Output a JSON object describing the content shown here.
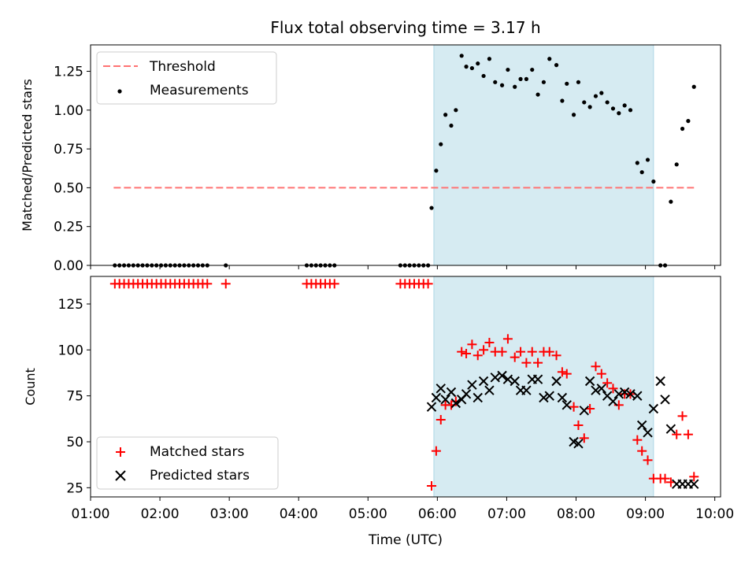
{
  "title": "Flux total observing time = 3.17 h",
  "xlabel": "Time (UTC)",
  "x_ticks": [
    "01:00",
    "02:00",
    "03:00",
    "04:00",
    "05:00",
    "06:00",
    "07:00",
    "08:00",
    "09:00",
    "10:00"
  ],
  "colors": {
    "threshold": "#ff7373",
    "measurements": "#000000",
    "matched": "#ff0000",
    "predicted": "#000000",
    "window": "#add8e6"
  },
  "chart_data": [
    {
      "type": "scatter",
      "ylabel": "Matched/Predicted stars",
      "xlim": [
        "01:00",
        "10:05"
      ],
      "ylim": [
        0,
        1.42
      ],
      "y_ticks": [
        "0.00",
        "0.25",
        "0.50",
        "0.75",
        "1.00",
        "1.25"
      ],
      "shaded_window": [
        "05:57",
        "09:07"
      ],
      "legend_position": "upper left",
      "threshold": {
        "name": "Threshold",
        "value": 0.5,
        "x_range": [
          "01:20",
          "09:42"
        ]
      },
      "series": [
        {
          "name": "Measurements",
          "marker": "dot",
          "x": [
            "01:21",
            "01:25",
            "01:29",
            "01:33",
            "01:37",
            "01:41",
            "01:45",
            "01:49",
            "01:53",
            "01:57",
            "02:01",
            "02:05",
            "02:09",
            "02:13",
            "02:17",
            "02:21",
            "02:25",
            "02:29",
            "02:33",
            "02:37",
            "02:41",
            "02:57",
            "04:07",
            "04:11",
            "04:15",
            "04:19",
            "04:23",
            "04:27",
            "04:31",
            "05:28",
            "05:32",
            "05:36",
            "05:40",
            "05:44",
            "05:48",
            "05:52",
            "05:55",
            "05:59",
            "06:03",
            "06:07",
            "06:12",
            "06:16",
            "06:21",
            "06:25",
            "06:30",
            "06:35",
            "06:40",
            "06:45",
            "06:50",
            "06:56",
            "07:01",
            "07:07",
            "07:12",
            "07:17",
            "07:22",
            "07:27",
            "07:32",
            "07:37",
            "07:43",
            "07:48",
            "07:52",
            "07:58",
            "08:02",
            "08:07",
            "08:12",
            "08:17",
            "08:22",
            "08:27",
            "08:32",
            "08:37",
            "08:42",
            "08:47",
            "08:53",
            "08:57",
            "09:02",
            "09:07",
            "09:13",
            "09:17",
            "09:22",
            "09:27",
            "09:32",
            "09:37",
            "09:42"
          ],
          "y": [
            0,
            0,
            0,
            0,
            0,
            0,
            0,
            0,
            0,
            0,
            0,
            0,
            0,
            0,
            0,
            0,
            0,
            0,
            0,
            0,
            0,
            0,
            0,
            0,
            0,
            0,
            0,
            0,
            0,
            0,
            0,
            0,
            0,
            0,
            0,
            0,
            0.37,
            0.61,
            0.78,
            0.97,
            0.9,
            1.0,
            1.35,
            1.28,
            1.27,
            1.3,
            1.22,
            1.33,
            1.18,
            1.16,
            1.26,
            1.15,
            1.2,
            1.2,
            1.26,
            1.1,
            1.18,
            1.33,
            1.29,
            1.06,
            1.17,
            0.97,
            1.18,
            1.05,
            1.02,
            1.09,
            1.11,
            1.05,
            1.01,
            0.98,
            1.03,
            1.0,
            0.66,
            0.6,
            0.68,
            0.54,
            0,
            0,
            0.41,
            0.65,
            0.88,
            0.93,
            1.15
          ]
        }
      ]
    },
    {
      "type": "scatter",
      "ylabel": "Count",
      "xlim": [
        "01:00",
        "10:05"
      ],
      "ylim": [
        20,
        140
      ],
      "y_ticks": [
        "25",
        "50",
        "75",
        "100",
        "125"
      ],
      "shaded_window": [
        "05:57",
        "09:07"
      ],
      "legend_position": "lower left",
      "series": [
        {
          "name": "Matched stars",
          "marker": "plus",
          "x": [
            "01:21",
            "01:25",
            "01:29",
            "01:33",
            "01:37",
            "01:41",
            "01:45",
            "01:49",
            "01:53",
            "01:57",
            "02:01",
            "02:05",
            "02:09",
            "02:13",
            "02:17",
            "02:21",
            "02:25",
            "02:29",
            "02:33",
            "02:37",
            "02:41",
            "02:57",
            "04:07",
            "04:11",
            "04:15",
            "04:19",
            "04:23",
            "04:27",
            "04:31",
            "05:28",
            "05:32",
            "05:36",
            "05:40",
            "05:44",
            "05:48",
            "05:52",
            "05:55",
            "05:59",
            "06:03",
            "06:07",
            "06:12",
            "06:16",
            "06:21",
            "06:25",
            "06:30",
            "06:35",
            "06:40",
            "06:45",
            "06:50",
            "06:56",
            "07:01",
            "07:07",
            "07:12",
            "07:17",
            "07:22",
            "07:27",
            "07:32",
            "07:37",
            "07:43",
            "07:48",
            "07:52",
            "07:58",
            "08:02",
            "08:07",
            "08:12",
            "08:17",
            "08:22",
            "08:27",
            "08:32",
            "08:37",
            "08:42",
            "08:47",
            "08:53",
            "08:57",
            "09:02",
            "09:07",
            "09:13",
            "09:17",
            "09:22",
            "09:27",
            "09:32",
            "09:37",
            "09:42"
          ],
          "y": [
            136,
            136,
            136,
            136,
            136,
            136,
            136,
            136,
            136,
            136,
            136,
            136,
            136,
            136,
            136,
            136,
            136,
            136,
            136,
            136,
            136,
            136,
            136,
            136,
            136,
            136,
            136,
            136,
            136,
            136,
            136,
            136,
            136,
            136,
            136,
            136,
            26,
            45,
            62,
            70,
            70,
            72,
            99,
            98,
            103,
            97,
            100,
            104,
            99,
            99,
            106,
            96,
            99,
            93,
            99,
            93,
            99,
            99,
            97,
            88,
            87,
            69,
            59,
            52,
            68,
            91,
            87,
            82,
            79,
            70,
            76,
            76,
            51,
            45,
            40,
            30,
            30,
            30,
            28,
            54,
            64,
            54,
            31
          ]
        },
        {
          "name": "Predicted stars",
          "marker": "x",
          "x": [
            "05:55",
            "05:59",
            "06:03",
            "06:07",
            "06:12",
            "06:16",
            "06:21",
            "06:25",
            "06:30",
            "06:35",
            "06:40",
            "06:45",
            "06:50",
            "06:56",
            "07:01",
            "07:07",
            "07:12",
            "07:17",
            "07:22",
            "07:27",
            "07:32",
            "07:37",
            "07:43",
            "07:48",
            "07:52",
            "07:58",
            "08:02",
            "08:07",
            "08:12",
            "08:17",
            "08:22",
            "08:27",
            "08:32",
            "08:37",
            "08:42",
            "08:47",
            "08:53",
            "08:57",
            "09:02",
            "09:07",
            "09:13",
            "09:17",
            "09:22",
            "09:27",
            "09:32",
            "09:37",
            "09:42"
          ],
          "y": [
            69,
            74,
            79,
            73,
            77,
            71,
            73,
            76,
            81,
            74,
            83,
            78,
            85,
            86,
            84,
            83,
            78,
            78,
            84,
            84,
            74,
            75,
            83,
            74,
            70,
            50,
            49,
            67,
            83,
            78,
            79,
            75,
            72,
            76,
            77,
            76,
            75,
            59,
            55,
            68,
            83,
            73,
            57,
            27,
            27,
            27,
            27
          ]
        }
      ]
    }
  ]
}
